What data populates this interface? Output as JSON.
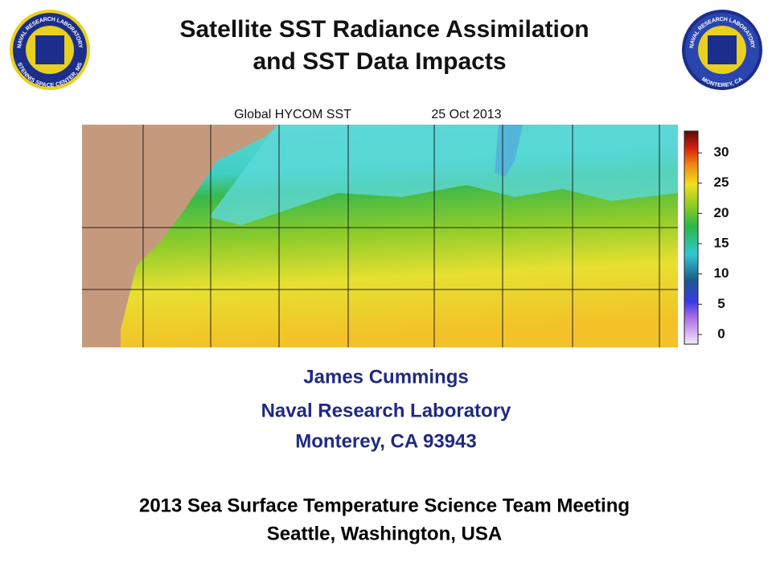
{
  "title": [
    "Satellite SST Radiance Assimilation",
    "and SST Data Impacts"
  ],
  "logos": [
    {
      "top": "NAVAL RESEARCH LABORATORY",
      "bottom": "STENNIS SPACE CENTER, MS"
    },
    {
      "top": "NAVAL RESEARCH LABORATORY",
      "bottom": "MONTEREY, CA"
    }
  ],
  "map": {
    "caption": "Global HYCOM SST",
    "date": "25 Oct 2013",
    "colorbar": {
      "clim": [
        -1.6,
        33.6
      ],
      "ticks": [
        0,
        5,
        10,
        15,
        20,
        25,
        30
      ]
    }
  },
  "author": [
    "James Cummings",
    "Naval Research Laboratory",
    "Monterey, CA 93943"
  ],
  "meeting": [
    "2013 Sea Surface Temperature Science Team Meeting",
    "Seattle, Washington, USA"
  ]
}
